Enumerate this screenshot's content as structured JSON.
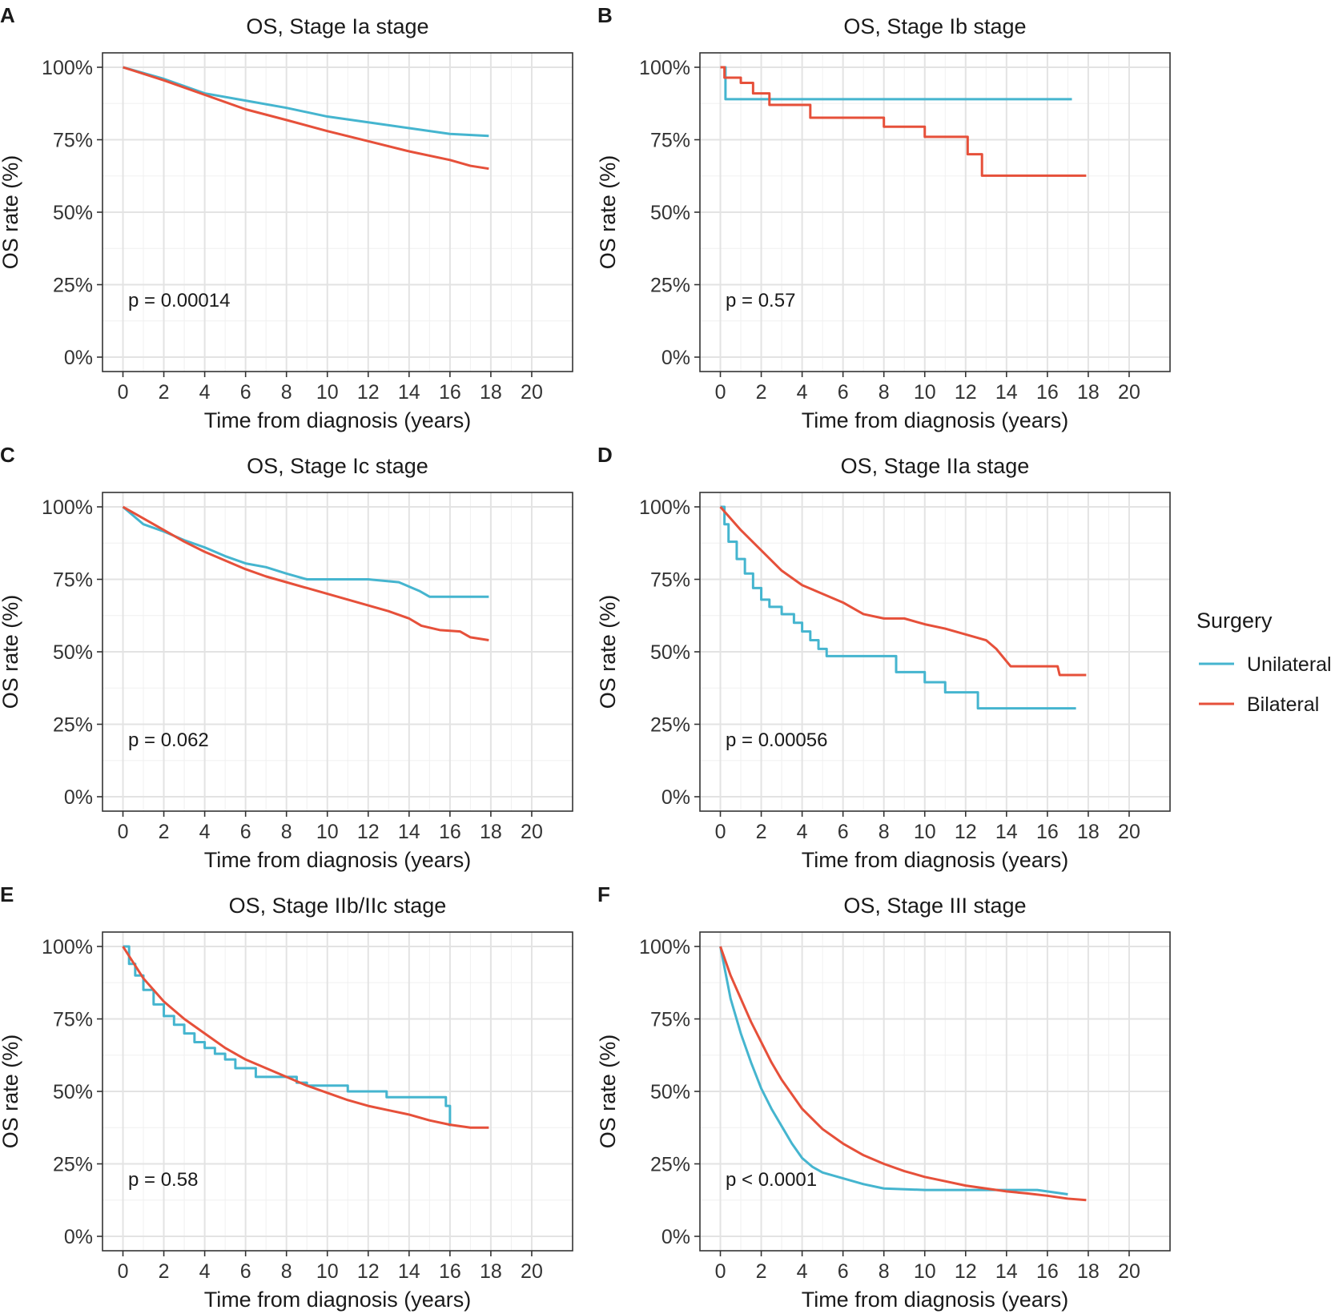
{
  "chart_data": [
    {
      "type": "line",
      "panel": "A",
      "title": "OS, Stage Ia stage",
      "xlabel": "Time from diagnosis (years)",
      "ylabel": "OS rate (%)",
      "xlim": [
        -1,
        22
      ],
      "ylim": [
        0,
        100
      ],
      "xticks": [
        0,
        2,
        4,
        6,
        8,
        10,
        12,
        14,
        16,
        18,
        20
      ],
      "yticks": [
        0,
        25,
        50,
        75,
        100
      ],
      "ytick_labels": [
        "0%",
        "25%",
        "50%",
        "75%",
        "100%"
      ],
      "grid": true,
      "annotation": "p = 0.00014",
      "series": [
        {
          "name": "Unilateral",
          "x": [
            0,
            2,
            4,
            6,
            8,
            10,
            12,
            14,
            16,
            17.9
          ],
          "y": [
            100,
            96,
            91,
            88.5,
            86,
            83,
            81,
            79,
            77,
            76.3
          ]
        },
        {
          "name": "Bilateral",
          "x": [
            0,
            2,
            4,
            6,
            8,
            10,
            12,
            14,
            16,
            17,
            17.9
          ],
          "y": [
            100,
            95.5,
            90.5,
            85.5,
            81.8,
            78,
            74.5,
            71,
            68,
            66,
            65
          ]
        }
      ]
    },
    {
      "type": "line",
      "panel": "B",
      "title": "OS, Stage Ib stage",
      "xlabel": "Time from diagnosis (years)",
      "ylabel": "OS rate (%)",
      "xlim": [
        -1,
        22
      ],
      "ylim": [
        0,
        100
      ],
      "xticks": [
        0,
        2,
        4,
        6,
        8,
        10,
        12,
        14,
        16,
        18,
        20
      ],
      "yticks": [
        0,
        25,
        50,
        75,
        100
      ],
      "ytick_labels": [
        "0%",
        "25%",
        "50%",
        "75%",
        "100%"
      ],
      "grid": true,
      "annotation": "p = 0.57",
      "series": [
        {
          "name": "Unilateral",
          "step": true,
          "x": [
            0,
            0.25,
            17.2
          ],
          "y": [
            100,
            89,
            89
          ]
        },
        {
          "name": "Bilateral",
          "step": true,
          "x": [
            0,
            0.2,
            1,
            1.6,
            2.4,
            4.4,
            8,
            10,
            12.1,
            12.8,
            17.9
          ],
          "y": [
            100,
            96.4,
            94.6,
            91,
            87,
            82.6,
            79.5,
            76,
            70,
            62.6,
            62.6
          ]
        }
      ]
    },
    {
      "type": "line",
      "panel": "C",
      "title": "OS, Stage Ic stage",
      "xlabel": "Time from diagnosis (years)",
      "ylabel": "OS rate (%)",
      "xlim": [
        -1,
        22
      ],
      "ylim": [
        0,
        100
      ],
      "xticks": [
        0,
        2,
        4,
        6,
        8,
        10,
        12,
        14,
        16,
        18,
        20
      ],
      "yticks": [
        0,
        25,
        50,
        75,
        100
      ],
      "ytick_labels": [
        "0%",
        "25%",
        "50%",
        "75%",
        "100%"
      ],
      "grid": true,
      "annotation": "p = 0.062",
      "series": [
        {
          "name": "Unilateral",
          "x": [
            0,
            1,
            2,
            3,
            4,
            5,
            6,
            7,
            8,
            9,
            10,
            12,
            13.5,
            14.5,
            15,
            17.9
          ],
          "y": [
            100,
            94,
            91.5,
            88.5,
            86,
            83,
            80.5,
            79.2,
            77,
            75,
            75,
            75,
            74,
            71,
            69,
            69
          ]
        },
        {
          "name": "Bilateral",
          "x": [
            0,
            1,
            2,
            3,
            4,
            5,
            6,
            7,
            8,
            9,
            10,
            11,
            12,
            13,
            14,
            14.6,
            15.5,
            16.5,
            17,
            17.9
          ],
          "y": [
            100,
            96,
            92,
            88,
            84.5,
            81.5,
            78.5,
            76,
            74,
            72,
            70,
            68,
            66,
            64,
            61.5,
            59,
            57.5,
            57,
            55,
            54
          ]
        }
      ]
    },
    {
      "type": "line",
      "panel": "D",
      "title": "OS, Stage IIa stage",
      "xlabel": "Time from diagnosis (years)",
      "ylabel": "OS rate (%)",
      "xlim": [
        -1,
        22
      ],
      "ylim": [
        0,
        100
      ],
      "xticks": [
        0,
        2,
        4,
        6,
        8,
        10,
        12,
        14,
        16,
        18,
        20
      ],
      "yticks": [
        0,
        25,
        50,
        75,
        100
      ],
      "ytick_labels": [
        "0%",
        "25%",
        "50%",
        "75%",
        "100%"
      ],
      "grid": true,
      "annotation": "p = 0.00056",
      "series": [
        {
          "name": "Unilateral",
          "step": true,
          "x": [
            0,
            0.2,
            0.4,
            0.8,
            1.2,
            1.6,
            2.0,
            2.4,
            3.0,
            3.6,
            4.0,
            4.4,
            4.8,
            5.2,
            8.6,
            10,
            11,
            12.6,
            17.4
          ],
          "y": [
            100,
            94,
            88,
            82,
            77,
            72,
            68,
            65.5,
            63,
            60,
            57,
            54,
            51,
            48.5,
            43,
            39.5,
            36,
            30.5,
            30.5
          ]
        },
        {
          "name": "Bilateral",
          "x": [
            0,
            0.5,
            1,
            2,
            3,
            4,
            5,
            6,
            7,
            8,
            9,
            10,
            11,
            12,
            13,
            13.5,
            14.2,
            16.5,
            16.6,
            17.9
          ],
          "y": [
            100,
            96,
            92,
            85,
            78,
            73,
            70,
            67,
            63,
            61.5,
            61.5,
            59.5,
            58,
            56,
            54,
            51,
            45,
            45,
            42,
            42
          ]
        }
      ]
    },
    {
      "type": "line",
      "panel": "E",
      "title": "OS, Stage IIb/IIc stage",
      "xlabel": "Time from diagnosis (years)",
      "ylabel": "OS rate (%)",
      "xlim": [
        -1,
        22
      ],
      "ylim": [
        0,
        100
      ],
      "xticks": [
        0,
        2,
        4,
        6,
        8,
        10,
        12,
        14,
        16,
        18,
        20
      ],
      "yticks": [
        0,
        25,
        50,
        75,
        100
      ],
      "ytick_labels": [
        "0%",
        "25%",
        "50%",
        "75%",
        "100%"
      ],
      "grid": true,
      "annotation": "p = 0.58",
      "series": [
        {
          "name": "Unilateral",
          "step": true,
          "x": [
            0,
            0.3,
            0.6,
            1,
            1.5,
            2,
            2.5,
            3,
            3.5,
            4,
            4.5,
            5,
            5.5,
            6.5,
            8.5,
            9,
            11,
            12.9,
            15.8,
            16
          ],
          "y": [
            100,
            94,
            90,
            85,
            80,
            76,
            73,
            70,
            67,
            65,
            63,
            61,
            58,
            55,
            53,
            52,
            50,
            48,
            45,
            38
          ]
        },
        {
          "name": "Bilateral",
          "x": [
            0,
            1,
            2,
            3,
            4,
            5,
            6,
            7,
            8,
            9,
            10,
            11,
            12,
            13,
            14,
            15,
            16,
            17,
            17.9
          ],
          "y": [
            100,
            89,
            81,
            75,
            70,
            65,
            61,
            58,
            55,
            52,
            49.5,
            47,
            45,
            43.5,
            42,
            40,
            38.5,
            37.5,
            37.5
          ]
        }
      ]
    },
    {
      "type": "line",
      "panel": "F",
      "title": "OS, Stage III stage",
      "xlabel": "Time from diagnosis (years)",
      "ylabel": "OS rate (%)",
      "xlim": [
        -1,
        22
      ],
      "ylim": [
        0,
        100
      ],
      "xticks": [
        0,
        2,
        4,
        6,
        8,
        10,
        12,
        14,
        16,
        18,
        20
      ],
      "yticks": [
        0,
        25,
        50,
        75,
        100
      ],
      "ytick_labels": [
        "0%",
        "25%",
        "50%",
        "75%",
        "100%"
      ],
      "grid": true,
      "annotation": "p < 0.0001",
      "series": [
        {
          "name": "Unilateral",
          "x": [
            0,
            0.5,
            1,
            1.5,
            2,
            2.5,
            3,
            3.5,
            4,
            4.5,
            5,
            6,
            7,
            8,
            10,
            12,
            14,
            15.5,
            17
          ],
          "y": [
            100,
            82,
            70,
            60,
            51,
            44,
            38,
            32,
            27,
            24,
            22,
            20,
            18,
            16.5,
            16,
            16,
            16,
            16,
            14.5
          ]
        },
        {
          "name": "Bilateral",
          "x": [
            0,
            0.5,
            1,
            1.5,
            2,
            2.5,
            3,
            4,
            5,
            6,
            7,
            8,
            9,
            10,
            11,
            12,
            13,
            14,
            15,
            16,
            17,
            17.9
          ],
          "y": [
            100,
            90,
            82,
            74,
            67,
            60,
            54,
            44,
            37,
            32,
            28,
            25,
            22.5,
            20.5,
            19,
            17.5,
            16.5,
            15.5,
            14.8,
            14,
            13,
            12.5
          ]
        }
      ]
    }
  ],
  "legend": {
    "title": "Surgery",
    "items": [
      {
        "label": "Unilateral",
        "color": "#45b5cf"
      },
      {
        "label": "Bilateral",
        "color": "#e6503a"
      }
    ]
  },
  "colors": {
    "Unilateral": "#45b5cf",
    "Bilateral": "#e6503a"
  }
}
